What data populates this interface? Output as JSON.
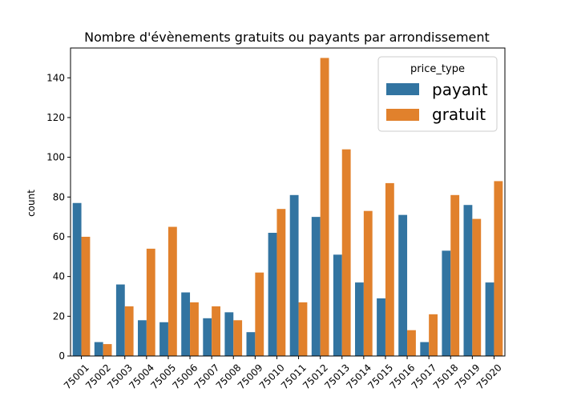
{
  "chart_data": {
    "type": "bar",
    "title": "Nombre d'évènements gratuits ou payants par arrondissement",
    "xlabel": "",
    "ylabel": "count",
    "ylim": [
      0,
      155
    ],
    "yticks": [
      0,
      20,
      40,
      60,
      80,
      100,
      120,
      140
    ],
    "categories": [
      "75001",
      "75002",
      "75003",
      "75004",
      "75005",
      "75006",
      "75007",
      "75008",
      "75009",
      "75010",
      "75011",
      "75012",
      "75013",
      "75014",
      "75015",
      "75016",
      "75017",
      "75018",
      "75019",
      "75020"
    ],
    "series": [
      {
        "name": "payant",
        "color": "#3274a1",
        "values": [
          77,
          7,
          36,
          18,
          17,
          32,
          19,
          22,
          12,
          62,
          81,
          70,
          51,
          37,
          29,
          71,
          7,
          53,
          76,
          37
        ]
      },
      {
        "name": "gratuit",
        "color": "#e1812c",
        "values": [
          60,
          6,
          25,
          54,
          65,
          27,
          25,
          18,
          42,
          74,
          27,
          150,
          104,
          73,
          87,
          13,
          21,
          81,
          69,
          88
        ]
      }
    ],
    "legend": {
      "title": "price_type",
      "position": "top-right"
    },
    "grid": false
  }
}
